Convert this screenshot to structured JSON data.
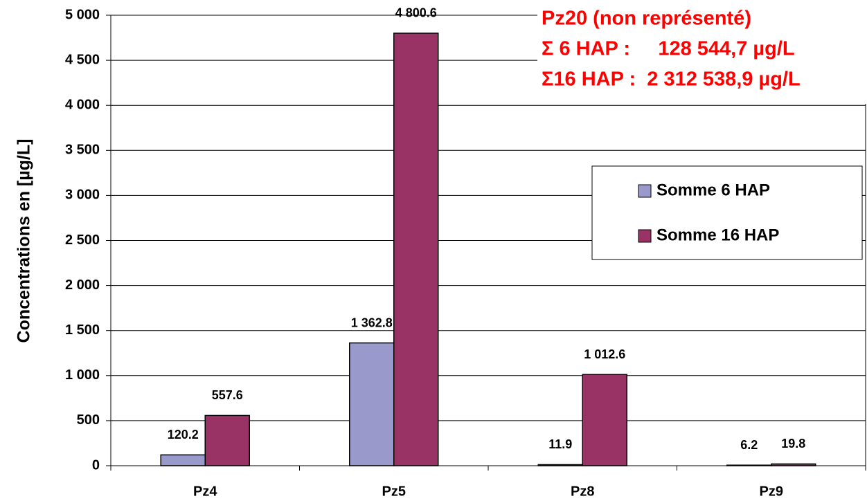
{
  "chart_data": {
    "type": "bar",
    "y_axis_label": "Concentrations en [µg/L]",
    "annotations": [
      "Pz20 (non représenté)",
      "Σ 6 HAP :     128 544,7 µg/L",
      "Σ16 HAP :  2 312 538,9 µg/L"
    ],
    "categories": [
      "Pz4",
      "Pz5",
      "Pz8",
      "Pz9"
    ],
    "series": [
      {
        "name": "Somme 6 HAP",
        "color": "#9999cc",
        "values": [
          120.2,
          1362.8,
          11.9,
          6.2
        ],
        "value_labels": [
          "120.2",
          "1 362.8",
          "11.9",
          "6.2"
        ]
      },
      {
        "name": "Somme 16 HAP",
        "color": "#993366",
        "values": [
          557.6,
          4800.6,
          1012.6,
          19.8
        ],
        "value_labels": [
          "557.6",
          "4 800.6",
          "1 012.6",
          "19.8"
        ]
      }
    ],
    "ylim": [
      0,
      5000
    ],
    "yticks": [
      0,
      500,
      {
        "value": 1000,
        "label": "1 000"
      },
      {
        "value": 1500,
        "label": "1 500"
      },
      {
        "value": 2000,
        "label": "2 000"
      },
      {
        "value": 2500,
        "label": "2 500"
      },
      {
        "value": 3000,
        "label": "3 000"
      },
      {
        "value": 3500,
        "label": "3 500"
      },
      {
        "value": 4000,
        "label": "4 000"
      },
      {
        "value": 4500,
        "label": "4 500"
      },
      {
        "value": 5000,
        "label": "5 000"
      }
    ],
    "grid": true,
    "legend": "right"
  }
}
